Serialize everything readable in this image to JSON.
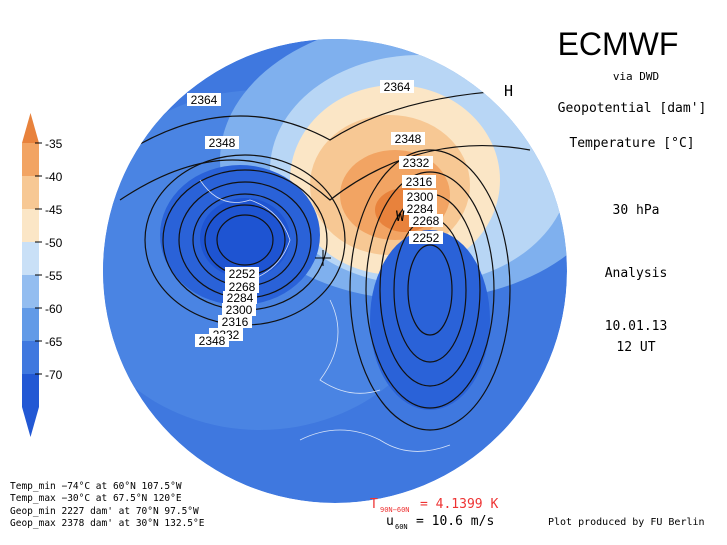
{
  "header": {
    "title": "ECMWF",
    "source": "via DWD",
    "field1": "Geopotential [dam']",
    "field2": "Temperature [°C]",
    "level": "30 hPa",
    "kind": "Analysis",
    "date": "10.01.13",
    "time": "12 UT"
  },
  "colorbar": {
    "ticks": [
      -35,
      -40,
      -45,
      -50,
      -55,
      -60,
      -65,
      -70
    ],
    "colors": [
      "#e8823c",
      "#f2a463",
      "#f7c894",
      "#fbe6c6",
      "#c9e0f7",
      "#93bdf0",
      "#619ae7",
      "#3f78df",
      "#2258d4"
    ]
  },
  "map": {
    "contour_labels_left": [
      "2364",
      "2348",
      "2252",
      "2268",
      "2284",
      "2300",
      "2316",
      "2332",
      "2348"
    ],
    "contour_labels_right": [
      "2364",
      "2348",
      "2332",
      "2316",
      "2300",
      "2284",
      "2268",
      "2252"
    ],
    "markers": [
      "H",
      "W"
    ]
  },
  "stats": [
    "Temp_min −74°C at 60°N 107.5°W",
    "Temp_max −30°C at 67.5°N 120°E",
    "Geop_min 2227 dam' at 70°N 97.5°W",
    "Geop_max 2378 dam' at 30°N 132.5°E"
  ],
  "footer": {
    "t_symbol": "T",
    "t_sub": "90N−60N",
    "t_value": "= 4.1399 K",
    "u_symbol": "u",
    "u_sub": "60N",
    "u_value": "= 10.6 m/s",
    "credit": "Plot produced by FU Berlin"
  }
}
